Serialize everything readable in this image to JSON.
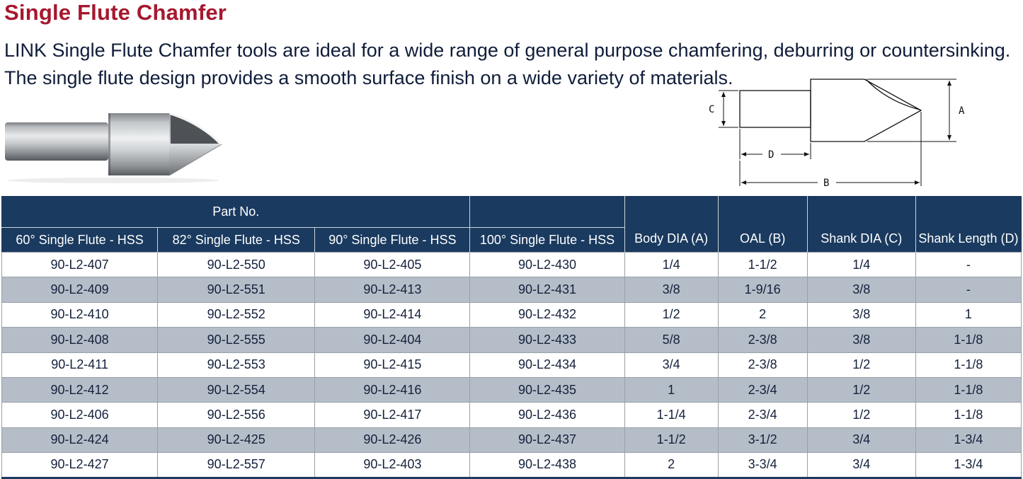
{
  "page": {
    "title": "Single Flute Chamfer",
    "description": "LINK Single Flute Chamfer tools are ideal for a wide range of general purpose chamfering, deburring or countersinking. The single flute design provides a smooth surface finish on a wide variety of materials."
  },
  "diagram": {
    "labels": {
      "a": "A",
      "b": "B",
      "c": "C",
      "d": "D"
    }
  },
  "table": {
    "group_header": "Part No.",
    "columns": [
      "60° Single Flute - HSS",
      "82° Single Flute - HSS",
      "90° Single Flute - HSS",
      "100° Single Flute - HSS",
      "Body DIA (A)",
      "OAL (B)",
      "Shank DIA (C)",
      "Shank Length (D)"
    ],
    "rows": [
      [
        "90-L2-407",
        "90-L2-550",
        "90-L2-405",
        "90-L2-430",
        "1/4",
        "1-1/2",
        "1/4",
        "-"
      ],
      [
        "90-L2-409",
        "90-L2-551",
        "90-L2-413",
        "90-L2-431",
        "3/8",
        "1-9/16",
        "3/8",
        "-"
      ],
      [
        "90-L2-410",
        "90-L2-552",
        "90-L2-414",
        "90-L2-432",
        "1/2",
        "2",
        "3/8",
        "1"
      ],
      [
        "90-L2-408",
        "90-L2-555",
        "90-L2-404",
        "90-L2-433",
        "5/8",
        "2-3/8",
        "3/8",
        "1-1/8"
      ],
      [
        "90-L2-411",
        "90-L2-553",
        "90-L2-415",
        "90-L2-434",
        "3/4",
        "2-3/8",
        "1/2",
        "1-1/8"
      ],
      [
        "90-L2-412",
        "90-L2-554",
        "90-L2-416",
        "90-L2-435",
        "1",
        "2-3/4",
        "1/2",
        "1-1/8"
      ],
      [
        "90-L2-406",
        "90-L2-556",
        "90-L2-417",
        "90-L2-436",
        "1-1/4",
        "2-3/4",
        "1/2",
        "1-1/8"
      ],
      [
        "90-L2-424",
        "90-L2-425",
        "90-L2-426",
        "90-L2-437",
        "1-1/2",
        "3-1/2",
        "3/4",
        "1-3/4"
      ],
      [
        "90-L2-427",
        "90-L2-557",
        "90-L2-403",
        "90-L2-438",
        "2",
        "3-3/4",
        "3/4",
        "1-3/4"
      ]
    ]
  },
  "colors": {
    "title": "#a5182e",
    "header_bg": "#1a3a5f",
    "row_alt": "#b5bec8",
    "body_text": "#14203c"
  }
}
